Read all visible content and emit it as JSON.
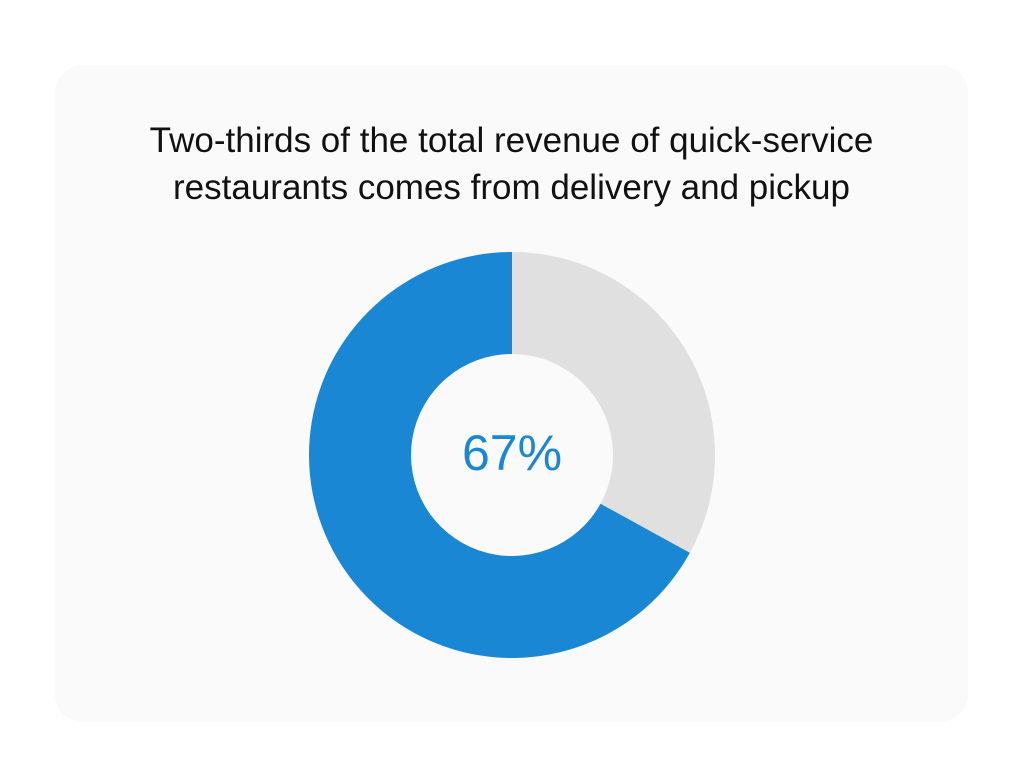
{
  "chart_data": {
    "type": "donut",
    "title": "Two-thirds of the total revenue of quick-service restaurants comes from delivery and pickup",
    "categories": [
      null,
      null
    ],
    "values": [
      67,
      33
    ],
    "value_labels": [
      "67%",
      null
    ],
    "colors": [
      "#1a87d5",
      "#e0e0e0"
    ]
  }
}
